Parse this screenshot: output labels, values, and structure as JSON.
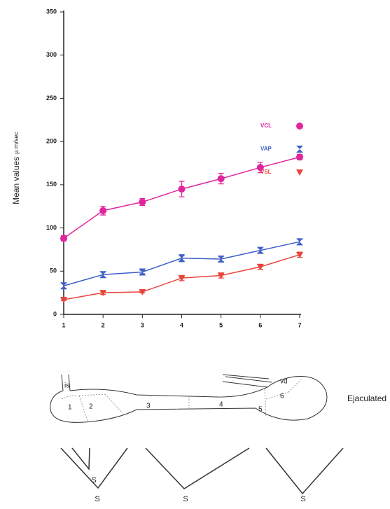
{
  "chart_data": {
    "type": "line",
    "y_label": "Mean values",
    "y_unit": "µ m/sec",
    "x": [
      1,
      2,
      3,
      4,
      5,
      6,
      7
    ],
    "xlim": [
      1,
      7
    ],
    "xticks": [
      1,
      2,
      3,
      4,
      5,
      6,
      7
    ],
    "ylim": [
      0,
      350
    ],
    "yticks": [
      0,
      50,
      100,
      150,
      200,
      250,
      300,
      350
    ],
    "legend": "right",
    "series": [
      {
        "name": "VCL",
        "color": "#e0259e",
        "marker": "circle",
        "values": [
          88,
          120,
          130,
          145,
          157,
          170,
          182
        ],
        "errors": [
          3,
          5,
          4,
          9,
          6,
          6,
          3
        ]
      },
      {
        "name": "VAP",
        "color": "#3f5fc8",
        "marker": "bowtie",
        "values": [
          33,
          46,
          49,
          65,
          64,
          74,
          84
        ],
        "errors": [
          3,
          3,
          2,
          4,
          3,
          3,
          3
        ]
      },
      {
        "name": "VSL",
        "color": "#e8453c",
        "marker": "triangle-down",
        "values": [
          17,
          25,
          26,
          42,
          45,
          55,
          69
        ],
        "errors": [
          1,
          2,
          1,
          3,
          3,
          3,
          3
        ]
      }
    ]
  },
  "diagram": {
    "regions": [
      "is",
      "1",
      "2",
      "3",
      "4",
      "5",
      "6",
      "vd"
    ],
    "ejaculated": "Ejaculated",
    "s_labels": [
      "S",
      "S",
      "S",
      "S"
    ]
  }
}
